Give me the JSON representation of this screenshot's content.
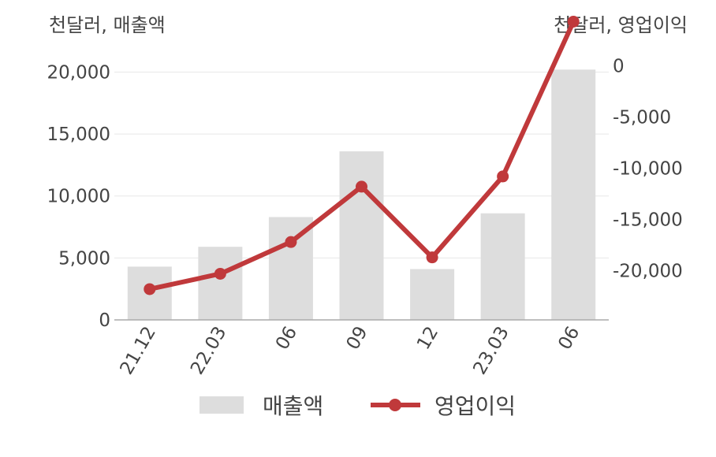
{
  "chart_data": {
    "type": "bar",
    "categories": [
      "21.12",
      "22.03",
      "06",
      "09",
      "12",
      "23.03",
      "06"
    ],
    "left_unit_label": "천달러, 매출액",
    "right_unit_label": "천달러, 영업이익",
    "left_axis": {
      "ylim": [
        0,
        22000
      ],
      "ticks": [
        0,
        5000,
        10000,
        15000,
        20000
      ],
      "tick_labels": [
        "0",
        "5,000",
        "10,000",
        "15,000",
        "20,000"
      ]
    },
    "right_axis": {
      "ylim": [
        -24800,
        1800
      ],
      "ticks": [
        0,
        -5000,
        -10000,
        -15000,
        -20000
      ],
      "tick_labels": [
        "0",
        "-5,000",
        "-10,000",
        "-15,000",
        "-20,000"
      ]
    },
    "series": [
      {
        "name": "매출액",
        "type": "bar",
        "axis": "left",
        "color": "#dddddd",
        "values": [
          4300,
          5900,
          8300,
          13600,
          4100,
          8600,
          20200
        ]
      },
      {
        "name": "영업이익",
        "type": "line",
        "axis": "right",
        "color": "#c0393b",
        "values": [
          -21800,
          -20300,
          -17200,
          -11800,
          -18700,
          -10800,
          4300
        ]
      }
    ],
    "grid": true,
    "legend_position": "bottom"
  }
}
